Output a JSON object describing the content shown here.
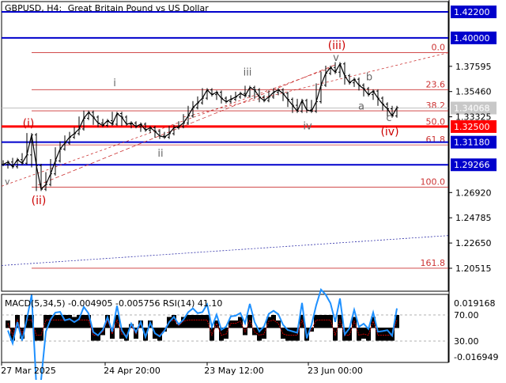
{
  "header": {
    "symbol": "GBPUSD, H4:",
    "description": "Great Britain Pound vs US Dollar"
  },
  "indicator": {
    "label": "MACD(5,34,5) -0.004905 -0.005756 RSI(14) 41.10",
    "right_labels": [
      "0.019168",
      "70.00",
      "30.00",
      "-0.016949"
    ]
  },
  "colors": {
    "blue_level": "#0000cc",
    "red_level": "#ff0000",
    "fib_line": "#cc3333",
    "price_bar": "#000000",
    "macd_hist": "#000000",
    "rsi_line": "#1e90ff",
    "signal_line": "#cc0000",
    "trend_line_blue": "#3333aa"
  },
  "chart_data": {
    "type": "line",
    "series_style": "bars",
    "ylim": [
      1.19,
      1.43
    ],
    "x_labels": [
      "27 Mar 2025",
      "24 Apr 20:00",
      "23 May 12:00",
      "23 Jun 00:00"
    ],
    "y_ticks": [
      1.422,
      1.4,
      1.37595,
      1.3546,
      1.33325,
      1.3118,
      1.29266,
      1.2692,
      1.24785,
      1.2265,
      1.20515
    ],
    "current_price": 1.34068,
    "levels_blue": [
      {
        "label": "1.42200",
        "value": 1.422
      },
      {
        "label": "1.40000",
        "value": 1.4
      },
      {
        "label": "1.31180",
        "value": 1.3118
      },
      {
        "label": "1.29266",
        "value": 1.29266
      }
    ],
    "level_red": {
      "label": "1.32500",
      "value": 1.325
    },
    "fib_levels": [
      {
        "label": "0.0",
        "value": 1.3875
      },
      {
        "label": "23.6",
        "value": 1.3562
      },
      {
        "label": "38.2",
        "value": 1.3383
      },
      {
        "label": "50.0",
        "value": 1.3245
      },
      {
        "label": "61.8",
        "value": 1.3095
      },
      {
        "label": "100.0",
        "value": 1.2738
      },
      {
        "label": "161.8",
        "value": 1.2052
      }
    ],
    "wave_labels_red": [
      "(i)",
      "(ii)",
      "(iii)",
      "(iv)"
    ],
    "wave_labels_gray": [
      "i",
      "ii",
      "iii",
      "iv",
      "v",
      "a",
      "b",
      "c"
    ],
    "price_path": [
      [
        0,
        1.293
      ],
      [
        6,
        1.295
      ],
      [
        12,
        1.291
      ],
      [
        18,
        1.297
      ],
      [
        24,
        1.294
      ],
      [
        30,
        1.301
      ],
      [
        36,
        1.318
      ],
      [
        42,
        1.292
      ],
      [
        48,
        1.272
      ],
      [
        54,
        1.276
      ],
      [
        60,
        1.285
      ],
      [
        66,
        1.296
      ],
      [
        72,
        1.306
      ],
      [
        78,
        1.311
      ],
      [
        84,
        1.316
      ],
      [
        90,
        1.319
      ],
      [
        96,
        1.323
      ],
      [
        102,
        1.332
      ],
      [
        108,
        1.337
      ],
      [
        114,
        1.333
      ],
      [
        120,
        1.328
      ],
      [
        126,
        1.326
      ],
      [
        132,
        1.33
      ],
      [
        138,
        1.327
      ],
      [
        144,
        1.336
      ],
      [
        150,
        1.333
      ],
      [
        156,
        1.327
      ],
      [
        162,
        1.328
      ],
      [
        168,
        1.325
      ],
      [
        174,
        1.327
      ],
      [
        180,
        1.322
      ],
      [
        186,
        1.324
      ],
      [
        192,
        1.321
      ],
      [
        198,
        1.317
      ],
      [
        204,
        1.316
      ],
      [
        210,
        1.319
      ],
      [
        216,
        1.324
      ],
      [
        222,
        1.325
      ],
      [
        228,
        1.328
      ],
      [
        234,
        1.334
      ],
      [
        240,
        1.341
      ],
      [
        246,
        1.345
      ],
      [
        252,
        1.349
      ],
      [
        258,
        1.356
      ],
      [
        264,
        1.352
      ],
      [
        270,
        1.354
      ],
      [
        276,
        1.349
      ],
      [
        282,
        1.346
      ],
      [
        288,
        1.348
      ],
      [
        294,
        1.35
      ],
      [
        300,
        1.353
      ],
      [
        306,
        1.351
      ],
      [
        312,
        1.358
      ],
      [
        318,
        1.356
      ],
      [
        324,
        1.35
      ],
      [
        330,
        1.347
      ],
      [
        336,
        1.35
      ],
      [
        342,
        1.354
      ],
      [
        348,
        1.356
      ],
      [
        354,
        1.353
      ],
      [
        360,
        1.348
      ],
      [
        366,
        1.343
      ],
      [
        372,
        1.338
      ],
      [
        378,
        1.347
      ],
      [
        384,
        1.339
      ],
      [
        390,
        1.338
      ],
      [
        396,
        1.346
      ],
      [
        402,
        1.36
      ],
      [
        408,
        1.37
      ],
      [
        414,
        1.375
      ],
      [
        420,
        1.371
      ],
      [
        426,
        1.378
      ],
      [
        432,
        1.368
      ],
      [
        438,
        1.362
      ],
      [
        444,
        1.365
      ],
      [
        450,
        1.36
      ],
      [
        456,
        1.357
      ],
      [
        462,
        1.352
      ],
      [
        468,
        1.355
      ],
      [
        474,
        1.349
      ],
      [
        480,
        1.344
      ],
      [
        486,
        1.34
      ],
      [
        492,
        1.334
      ],
      [
        498,
        1.341
      ]
    ]
  }
}
